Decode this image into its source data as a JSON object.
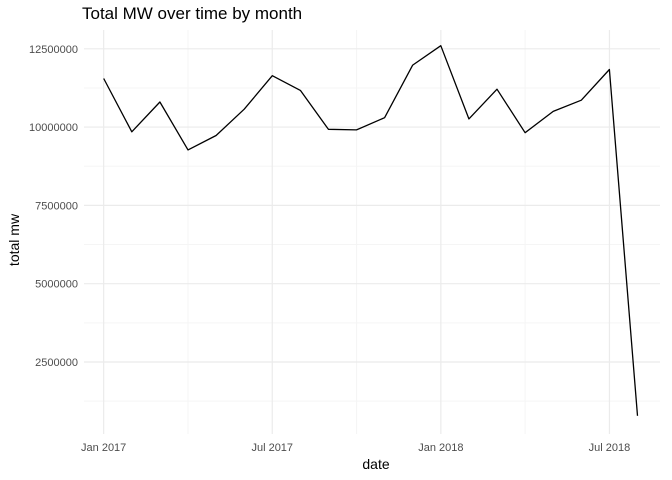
{
  "chart_data": {
    "type": "line",
    "title": "Total MW over time by month",
    "xlabel": "date",
    "ylabel": "total mw",
    "x": [
      "2017-01",
      "2017-02",
      "2017-03",
      "2017-04",
      "2017-05",
      "2017-06",
      "2017-07",
      "2017-08",
      "2017-09",
      "2017-10",
      "2017-11",
      "2017-12",
      "2018-01",
      "2018-02",
      "2018-03",
      "2018-04",
      "2018-05",
      "2018-06",
      "2018-07",
      "2018-08"
    ],
    "y": [
      11550000,
      9850000,
      10800000,
      9270000,
      9730000,
      10570000,
      11640000,
      11170000,
      9930000,
      9910000,
      10300000,
      11980000,
      12600000,
      10260000,
      11210000,
      9820000,
      10500000,
      10860000,
      11840000,
      780000
    ],
    "x_ticks": [
      {
        "date": "2017-01",
        "label": "Jan 2017"
      },
      {
        "date": "2017-07",
        "label": "Jul 2017"
      },
      {
        "date": "2018-01",
        "label": "Jan 2018"
      },
      {
        "date": "2018-07",
        "label": "Jul 2018"
      }
    ],
    "y_ticks": [
      {
        "value": 2500000,
        "label": "2500000"
      },
      {
        "value": 5000000,
        "label": "5000000"
      },
      {
        "value": 7500000,
        "label": "7500000"
      },
      {
        "value": 10000000,
        "label": "10000000"
      },
      {
        "value": 12500000,
        "label": "12500000"
      }
    ],
    "ylim": [
      200000,
      13100000
    ],
    "grid": true,
    "line_color": "#000000",
    "grid_major_color": "#ebebeb",
    "grid_minor_color": "#f5f5f5"
  }
}
